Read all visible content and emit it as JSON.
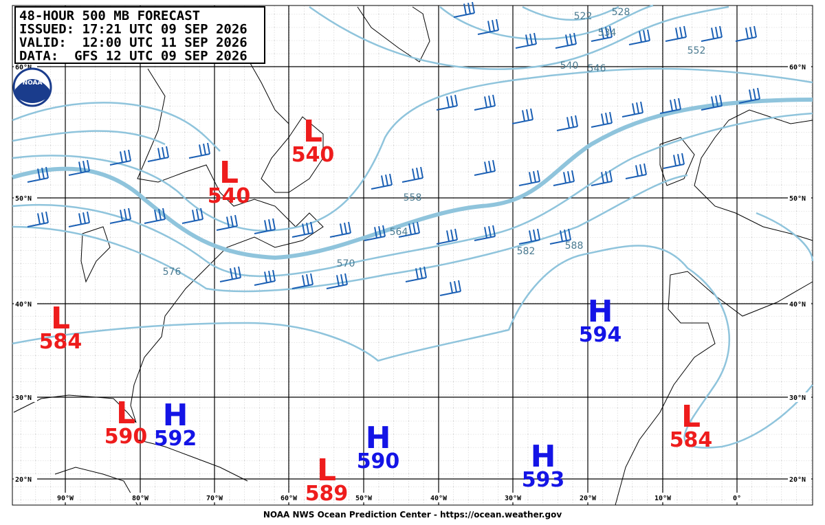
{
  "title_box": {
    "lines": [
      "48-HOUR 500 MB FORECAST",
      "ISSUED: 17:21 UTC 09 SEP 2026",
      "VALID:  12:00 UTC 11 SEP 2026",
      "DATA:  GFS 12 UTC 09 SEP 2026"
    ]
  },
  "logo": "NOAA",
  "latitudes": [
    "60°N",
    "50°N",
    "40°N",
    "30°N",
    "20°N"
  ],
  "longitudes": [
    "90°W",
    "80°W",
    "70°W",
    "60°W",
    "50°W",
    "40°W",
    "30°W",
    "20°W",
    "10°W",
    "0°"
  ],
  "centers": [
    {
      "letter": "L",
      "value": 540
    },
    {
      "letter": "L",
      "value": 540
    },
    {
      "letter": "L",
      "value": 584
    },
    {
      "letter": "L",
      "value": 590
    },
    {
      "letter": "H",
      "value": 592
    },
    {
      "letter": "H",
      "value": 590
    },
    {
      "letter": "L",
      "value": 589
    },
    {
      "letter": "H",
      "value": 593
    },
    {
      "letter": "H",
      "value": 594
    },
    {
      "letter": "L",
      "value": 584
    }
  ],
  "contour_labels": [
    522,
    528,
    534,
    540,
    546,
    552,
    558,
    564,
    570,
    576,
    582,
    588
  ],
  "footer": "NOAA NWS Ocean Prediction Center - https://ocean.weather.gov"
}
